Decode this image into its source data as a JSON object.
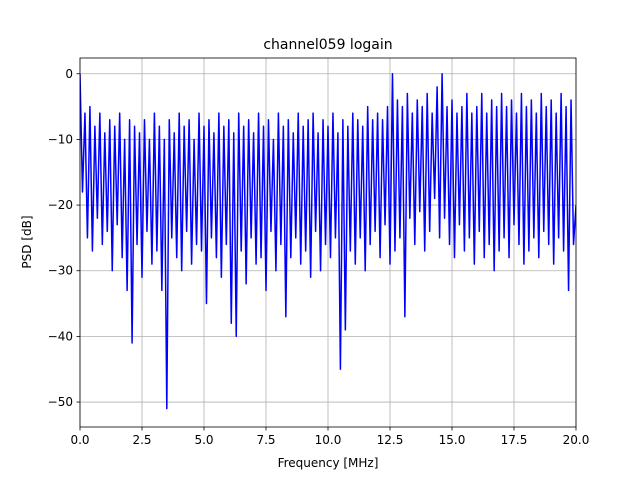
{
  "chart_data": {
    "type": "line",
    "title": "channel059 logain",
    "xlabel": "Frequency [MHz]",
    "ylabel": "PSD [dB]",
    "grid": true,
    "xlim": [
      0,
      20
    ],
    "ylim": [
      -53.8,
      2.4
    ],
    "xticks": [
      {
        "value": 0,
        "label": "0.0"
      },
      2.5,
      {
        "value": 5,
        "label": "5.0"
      },
      7.5,
      {
        "value": 10,
        "label": "10.0"
      },
      12.5,
      {
        "value": 15,
        "label": "15.0"
      },
      17.5,
      {
        "value": 20,
        "label": "20.0"
      }
    ],
    "yticks": [
      0,
      {
        "value": -10,
        "label": "−10"
      },
      {
        "value": -20,
        "label": "−20"
      },
      {
        "value": -30,
        "label": "−30"
      },
      {
        "value": -40,
        "label": "−40"
      },
      {
        "value": -50,
        "label": "−50"
      }
    ],
    "series": [
      {
        "color": "#0000ff",
        "x": [
          0,
          0.1,
          0.2,
          0.3,
          0.4,
          0.5,
          0.6,
          0.7,
          0.8,
          0.9,
          1,
          1.1,
          1.2,
          1.3,
          1.4,
          1.5,
          1.6,
          1.7,
          1.8,
          1.9,
          2,
          2.1,
          2.2,
          2.3,
          2.4,
          2.5,
          2.6,
          2.7,
          2.8,
          2.9,
          3,
          3.1,
          3.2,
          3.3,
          3.4,
          3.5,
          3.6,
          3.7,
          3.8,
          3.9,
          4,
          4.1,
          4.2,
          4.3,
          4.4,
          4.5,
          4.6,
          4.7,
          4.8,
          4.9,
          5,
          5.1,
          5.2,
          5.3,
          5.4,
          5.5,
          5.6,
          5.7,
          5.8,
          5.9,
          6,
          6.1,
          6.2,
          6.3,
          6.4,
          6.5,
          6.6,
          6.7,
          6.8,
          6.9,
          7,
          7.1,
          7.2,
          7.3,
          7.4,
          7.5,
          7.6,
          7.7,
          7.8,
          7.9,
          8,
          8.1,
          8.2,
          8.3,
          8.4,
          8.5,
          8.6,
          8.7,
          8.8,
          8.9,
          9,
          9.1,
          9.2,
          9.3,
          9.4,
          9.5,
          9.6,
          9.7,
          9.8,
          9.9,
          10,
          10.1,
          10.2,
          10.3,
          10.4,
          10.5,
          10.6,
          10.7,
          10.8,
          10.9,
          11,
          11.1,
          11.2,
          11.3,
          11.4,
          11.5,
          11.6,
          11.7,
          11.8,
          11.9,
          12,
          12.1,
          12.2,
          12.3,
          12.4,
          12.5,
          12.6,
          12.7,
          12.8,
          12.9,
          13,
          13.1,
          13.2,
          13.3,
          13.4,
          13.5,
          13.6,
          13.7,
          13.8,
          13.9,
          14,
          14.1,
          14.2,
          14.3,
          14.4,
          14.5,
          14.6,
          14.7,
          14.8,
          14.9,
          15,
          15.1,
          15.2,
          15.3,
          15.4,
          15.5,
          15.6,
          15.7,
          15.8,
          15.9,
          16,
          16.1,
          16.2,
          16.3,
          16.4,
          16.5,
          16.6,
          16.7,
          16.8,
          16.9,
          17,
          17.1,
          17.2,
          17.3,
          17.4,
          17.5,
          17.6,
          17.7,
          17.8,
          17.9,
          18,
          18.1,
          18.2,
          18.3,
          18.4,
          18.5,
          18.6,
          18.7,
          18.8,
          18.9,
          19,
          19.1,
          19.2,
          19.3,
          19.4,
          19.5,
          19.6,
          19.7,
          19.8,
          19.9,
          20
        ],
        "values": [
          0,
          -18,
          -6,
          -25,
          -5,
          -27,
          -8,
          -22,
          -6,
          -26,
          -9,
          -24,
          -7,
          -30,
          -8,
          -23,
          -6,
          -28,
          -10,
          -33,
          -7,
          -41,
          -8,
          -26,
          -9,
          -31,
          -7,
          -24,
          -10,
          -29,
          -6,
          -27,
          -8,
          -33,
          -10,
          -51,
          -7,
          -25,
          -9,
          -28,
          -6,
          -30,
          -8,
          -24,
          -7,
          -29,
          -10,
          -26,
          -6,
          -27,
          -8,
          -35,
          -7,
          -25,
          -9,
          -28,
          -6,
          -31,
          -8,
          -26,
          -7,
          -38,
          -9,
          -40,
          -6,
          -27,
          -8,
          -32,
          -7,
          -25,
          -9,
          -29,
          -6,
          -28,
          -8,
          -33,
          -7,
          -24,
          -10,
          -30,
          -6,
          -26,
          -8,
          -37,
          -7,
          -28,
          -9,
          -25,
          -6,
          -29,
          -8,
          -27,
          -7,
          -31,
          -6,
          -24,
          -9,
          -30,
          -7,
          -26,
          -8,
          -28,
          -6,
          -25,
          -9,
          -45,
          -7,
          -39,
          -8,
          -27,
          -6,
          -29,
          -7,
          -25,
          -8,
          -30,
          -5,
          -26,
          -7,
          -24,
          -6,
          -28,
          -7,
          -23,
          -5,
          -29,
          0,
          -27,
          -4,
          -25,
          -5,
          -37,
          -3,
          -22,
          -6,
          -26,
          -4,
          -21,
          -5,
          -27,
          -3,
          -24,
          -6,
          -19,
          -2,
          -25,
          0,
          -22,
          -5,
          -26,
          -4,
          -28,
          -6,
          -23,
          -5,
          -27,
          -3,
          -25,
          -6,
          -29,
          -5,
          -24,
          -3,
          -28,
          -6,
          -26,
          -4,
          -30,
          -5,
          -27,
          -3,
          -25,
          -5,
          -28,
          -4,
          -23,
          -6,
          -26,
          -3,
          -29,
          -5,
          -27,
          -4,
          -25,
          -6,
          -28,
          -3,
          -24,
          -5,
          -26,
          -4,
          -29,
          -6,
          -25,
          -3,
          -27,
          -5,
          -33,
          -4,
          -26,
          -20
        ]
      }
    ]
  }
}
